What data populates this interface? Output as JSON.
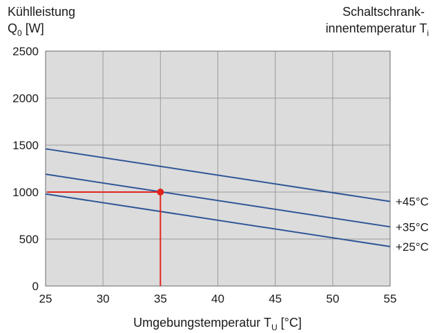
{
  "chart_data": {
    "type": "line",
    "ylabel_line1": "Kühlleistung",
    "ylabel_line2": "Q",
    "ylabel_sub": "0",
    "ylabel_unit": " [W]",
    "right_title_line1": "Schaltschrank-",
    "right_title_line2": "innentemperatur T",
    "right_title_sub": "i",
    "xlabel": "Umgebungstemperatur T",
    "xlabel_sub": "U",
    "xlabel_unit": " [°C]",
    "xlim": [
      25,
      55
    ],
    "ylim": [
      0,
      2500
    ],
    "x_ticks": [
      "25",
      "30",
      "35",
      "40",
      "45",
      "50",
      "55"
    ],
    "y_ticks": [
      "0",
      "500",
      "1000",
      "1500",
      "2000",
      "2500"
    ],
    "grid": true,
    "series": [
      {
        "name": "+45°C",
        "x": [
          25,
          55
        ],
        "y": [
          1460,
          900
        ]
      },
      {
        "name": "+35°C",
        "x": [
          25,
          55
        ],
        "y": [
          1190,
          630
        ]
      },
      {
        "name": "+25°C",
        "x": [
          25,
          55
        ],
        "y": [
          980,
          420
        ]
      }
    ],
    "annotation": {
      "x": 35,
      "y": 1000
    },
    "colors": {
      "plot_background": "#dcdcdc",
      "grid": "#9a9a9a",
      "series_line": "#2f5597",
      "marker": "#e2231a"
    }
  }
}
